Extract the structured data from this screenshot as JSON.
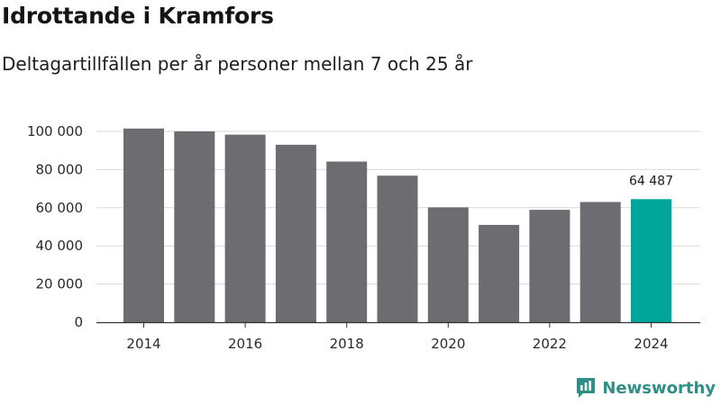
{
  "header": {
    "title": "Idrottande i Kramfors",
    "subtitle": "Deltagartillfällen per år personer mellan 7 och 25 år"
  },
  "brand": {
    "name": "Newsworthy",
    "icon": "newsworthy-logo-icon"
  },
  "colors": {
    "bar": "#6d6c71",
    "highlight": "#00a59a",
    "grid": "#d9d9d9",
    "axis": "#333333"
  },
  "chart_data": {
    "type": "bar",
    "title": "Idrottande i Kramfors",
    "subtitle": "Deltagartillfällen per år personer mellan 7 och 25 år",
    "xlabel": "",
    "ylabel": "",
    "categories": [
      "2014",
      "2015",
      "2016",
      "2017",
      "2018",
      "2019",
      "2020",
      "2021",
      "2022",
      "2023",
      "2024"
    ],
    "values": [
      101500,
      100000,
      98300,
      93000,
      84200,
      76800,
      60200,
      51000,
      58900,
      63000,
      64487
    ],
    "highlight_index": 10,
    "data_labels": [
      {
        "index": 10,
        "text": "64 487"
      }
    ],
    "x_tick_labels": [
      "2014",
      "2016",
      "2018",
      "2020",
      "2022",
      "2024"
    ],
    "y_ticks": [
      0,
      20000,
      40000,
      60000,
      80000,
      100000
    ],
    "y_tick_labels": [
      "0",
      "20 000",
      "40 000",
      "60 000",
      "80 000",
      "100 000"
    ],
    "ylim": [
      0,
      100000
    ],
    "grid": true,
    "legend": "none"
  }
}
